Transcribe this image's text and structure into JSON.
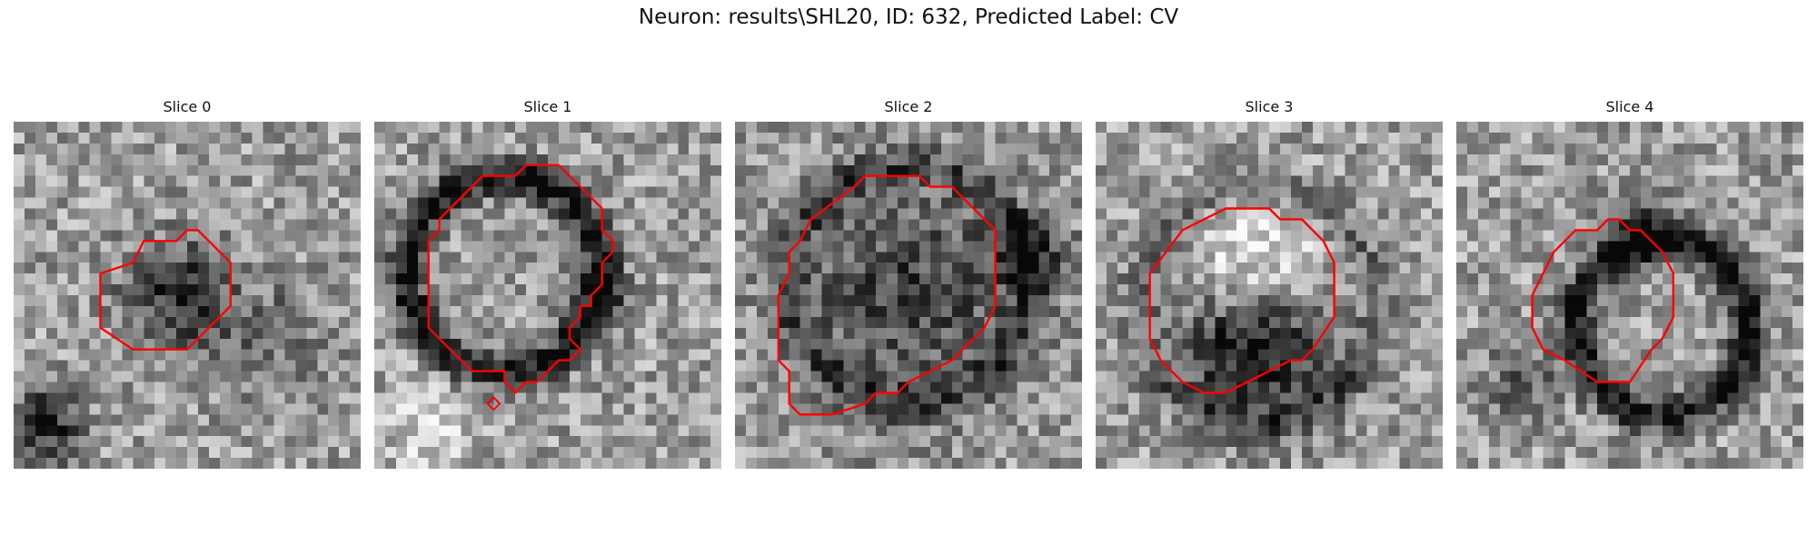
{
  "figure": {
    "title": "Neuron: results\\SHL20, ID: 632, Predicted Label: CV"
  },
  "slices": [
    {
      "title": "Slice 0",
      "seed": 11,
      "contour_color": "#ff0000",
      "image": "grayscale-micrograph-noise"
    },
    {
      "title": "Slice 1",
      "seed": 23,
      "contour_color": "#ff0000",
      "image": "grayscale-micrograph-noise"
    },
    {
      "title": "Slice 2",
      "seed": 37,
      "contour_color": "#ff0000",
      "image": "grayscale-micrograph-noise"
    },
    {
      "title": "Slice 3",
      "seed": 41,
      "contour_color": "#ff0000",
      "image": "grayscale-micrograph-noise"
    },
    {
      "title": "Slice 4",
      "seed": 59,
      "contour_color": "#ff0000",
      "image": "grayscale-micrograph-noise"
    }
  ]
}
